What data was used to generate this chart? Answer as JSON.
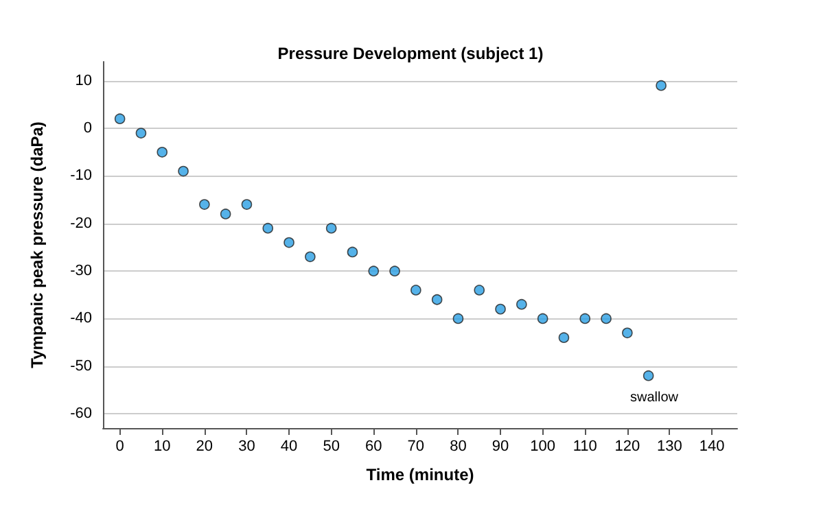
{
  "chart_data": {
    "type": "scatter",
    "title": "Pressure Development (subject 1)",
    "xlabel": "Time (minute)",
    "ylabel": "Tympanic peak pressure (daPa)",
    "x": [
      0,
      5,
      10,
      15,
      20,
      25,
      30,
      35,
      40,
      45,
      50,
      55,
      60,
      65,
      70,
      75,
      80,
      85,
      90,
      95,
      100,
      105,
      110,
      115,
      120,
      125,
      128
    ],
    "values": [
      2,
      -1,
      -5,
      -9,
      -16,
      -18,
      -16,
      -21,
      -24,
      -27,
      -21,
      -26,
      -30,
      -30,
      -34,
      -36,
      -40,
      -34,
      -38,
      -37,
      -40,
      -44,
      -40,
      -40,
      -43,
      -52,
      9
    ],
    "color": "#2a9fe3",
    "marker": "circle",
    "xlim": [
      -4,
      146
    ],
    "xticks": [
      0,
      10,
      20,
      30,
      40,
      50,
      60,
      70,
      80,
      90,
      100,
      110,
      120,
      130,
      140
    ],
    "ylim": [
      -63,
      14
    ],
    "yticks": [
      -60,
      -50,
      -40,
      -30,
      -20,
      -10,
      0,
      10
    ],
    "grid": "y",
    "annotations": [
      "swallow"
    ]
  }
}
